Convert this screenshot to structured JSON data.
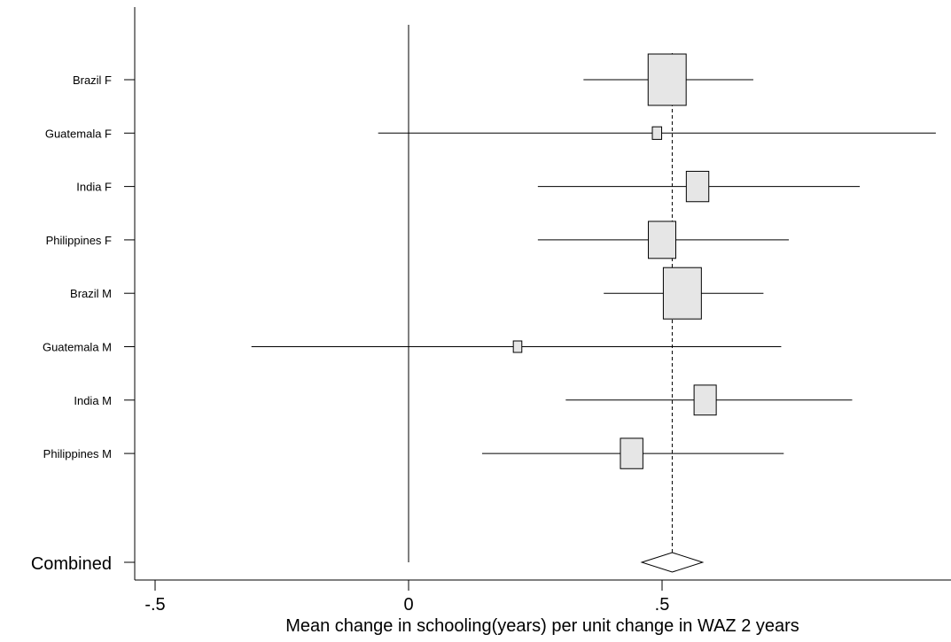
{
  "chart_data": {
    "type": "forest",
    "xlabel": "Mean change in schooling(years) per unit change in WAZ 2 years",
    "xlim": [
      -0.5,
      1.0
    ],
    "x_ticks": [
      {
        "value": -0.5,
        "label": "-.5"
      },
      {
        "value": 0,
        "label": "0"
      },
      {
        "value": 0.5,
        "label": ".5"
      }
    ],
    "null_line": 0,
    "pooled_line": 0.52,
    "studies": [
      {
        "label": "Brazil F",
        "estimate": 0.51,
        "ci_low": 0.345,
        "ci_high": 0.68,
        "weight": 0.1
      },
      {
        "label": "Guatemala F",
        "estimate": 0.49,
        "ci_low": -0.06,
        "ci_high": 1.04,
        "weight": 0.006
      },
      {
        "label": "India F",
        "estimate": 0.57,
        "ci_low": 0.255,
        "ci_high": 0.89,
        "weight": 0.035
      },
      {
        "label": "Philippines F",
        "estimate": 0.5,
        "ci_low": 0.255,
        "ci_high": 0.75,
        "weight": 0.052
      },
      {
        "label": "Brazil M",
        "estimate": 0.54,
        "ci_low": 0.385,
        "ci_high": 0.7,
        "weight": 0.1
      },
      {
        "label": "Guatemala M",
        "estimate": 0.215,
        "ci_low": -0.31,
        "ci_high": 0.735,
        "weight": 0.005
      },
      {
        "label": "India M",
        "estimate": 0.585,
        "ci_low": 0.31,
        "ci_high": 0.875,
        "weight": 0.034
      },
      {
        "label": "Philippines M",
        "estimate": 0.44,
        "ci_low": 0.145,
        "ci_high": 0.74,
        "weight": 0.035
      }
    ],
    "combined": {
      "label": "Combined",
      "estimate": 0.52,
      "ci_low": 0.46,
      "ci_high": 0.58
    }
  }
}
